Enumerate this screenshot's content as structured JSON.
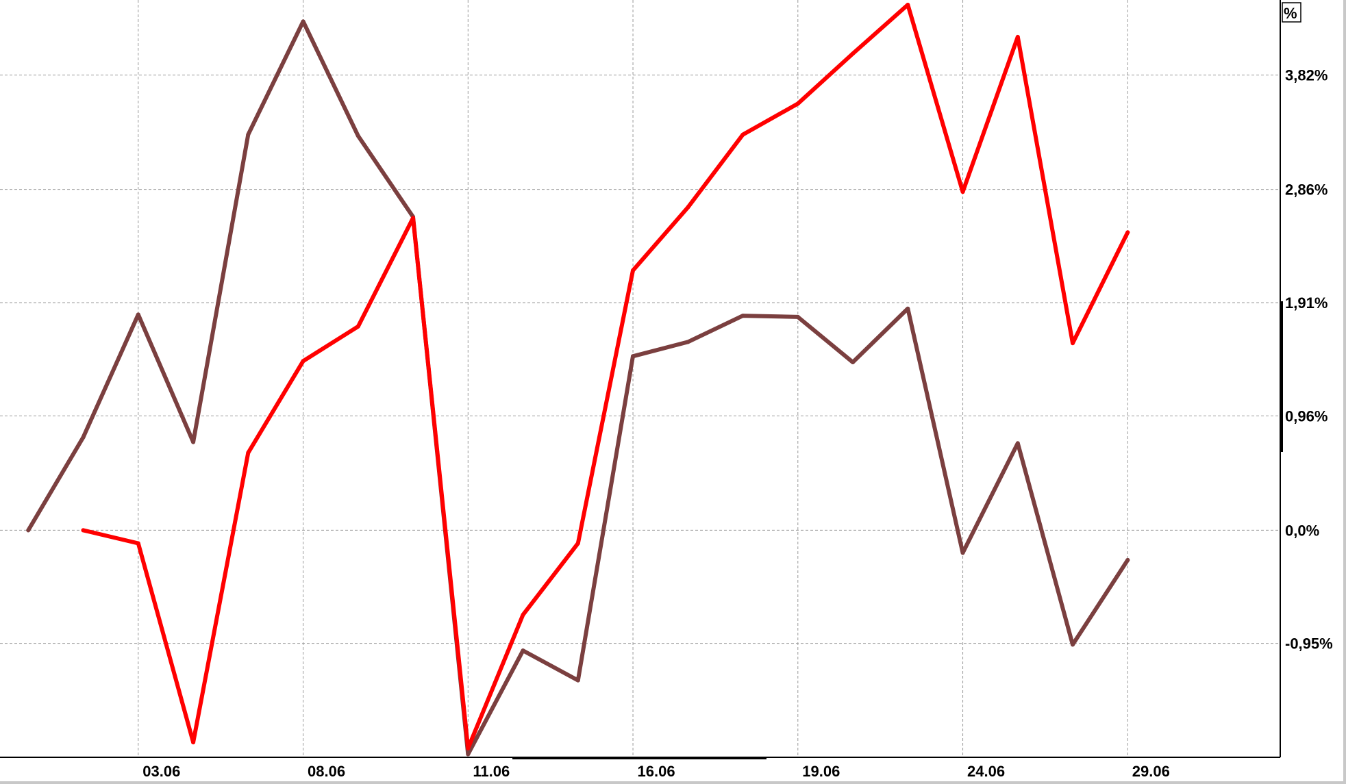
{
  "chart_data": {
    "type": "line",
    "unit_label": "%",
    "x": [
      0,
      1,
      2,
      3,
      4,
      5,
      6,
      7,
      8,
      9,
      10,
      11,
      12,
      13,
      14,
      15,
      16,
      17,
      18,
      19,
      20
    ],
    "x_tick_labels": [
      {
        "index": 2,
        "label": "03.06"
      },
      {
        "index": 5,
        "label": "08.06"
      },
      {
        "index": 8,
        "label": "11.06"
      },
      {
        "index": 11,
        "label": "16.06"
      },
      {
        "index": 14,
        "label": "19.06"
      },
      {
        "index": 17,
        "label": "24.06"
      },
      {
        "index": 20,
        "label": "29.06"
      }
    ],
    "y_ticks": [
      {
        "value": 3.82,
        "label": "3,82%"
      },
      {
        "value": 2.86,
        "label": "2,86%"
      },
      {
        "value": 1.91,
        "label": "1,91%"
      },
      {
        "value": 0.96,
        "label": "0,96%"
      },
      {
        "value": 0.0,
        "label": "0,0%"
      },
      {
        "value": -0.95,
        "label": "-0,95%"
      }
    ],
    "ylim": [
      -1.9,
      4.45
    ],
    "grid": true,
    "y_axis_position": "right",
    "series": [
      {
        "color": "#7b3f3f",
        "values": [
          0,
          0.78,
          1.81,
          0.74,
          3.32,
          4.27,
          3.31,
          2.63,
          -1.88,
          -1.01,
          -1.26,
          1.46,
          1.58,
          1.8,
          1.79,
          1.41,
          1.86,
          -0.19,
          0.73,
          -0.96,
          -0.25
        ]
      },
      {
        "color": "#ff0000",
        "values": [
          null,
          0,
          -0.11,
          -1.78,
          0.65,
          1.42,
          1.71,
          2.62,
          -1.83,
          -0.71,
          -0.11,
          2.18,
          2.71,
          3.32,
          3.58,
          4.0,
          4.41,
          2.84,
          4.14,
          1.57,
          2.5
        ]
      }
    ]
  }
}
